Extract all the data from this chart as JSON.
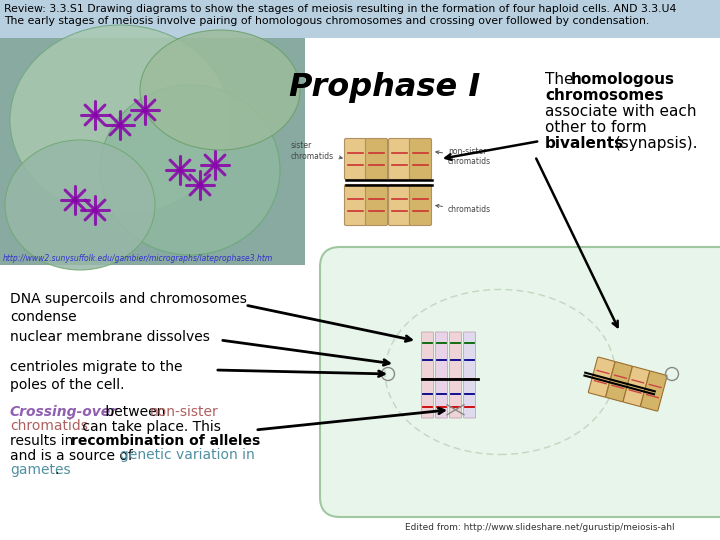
{
  "bg_color": "#ffffff",
  "header_bg": "#b8cfe0",
  "header_text1": "Review: 3.3.S1 Drawing diagrams to show the stages of meiosis resulting in the formation of four haploid cells. AND 3.3.U4",
  "header_text2": "The early stages of meiosis involve pairing of homologous chromosomes and crossing over followed by condensation.",
  "title_prophase": "Prophase I",
  "url_top": "http://www2.sunysuffolk.edu/gambier/micrographs/lateprophase3.htm",
  "url_bottom": "Edited from: http://www.slideshare.net/gurustip/meiosis-ahl",
  "color_purple": "#9060b0",
  "color_salmon": "#b06060",
  "color_teal": "#5090a0",
  "cell_bg": "#e8f5ea",
  "cell_border": "#a0c8a0",
  "nuc_border": "#c0d8c0",
  "img_bg_top": "#b0cfc0",
  "img_bg_bot": "#90b8a8",
  "microscope_bg": "#c0d8c8"
}
